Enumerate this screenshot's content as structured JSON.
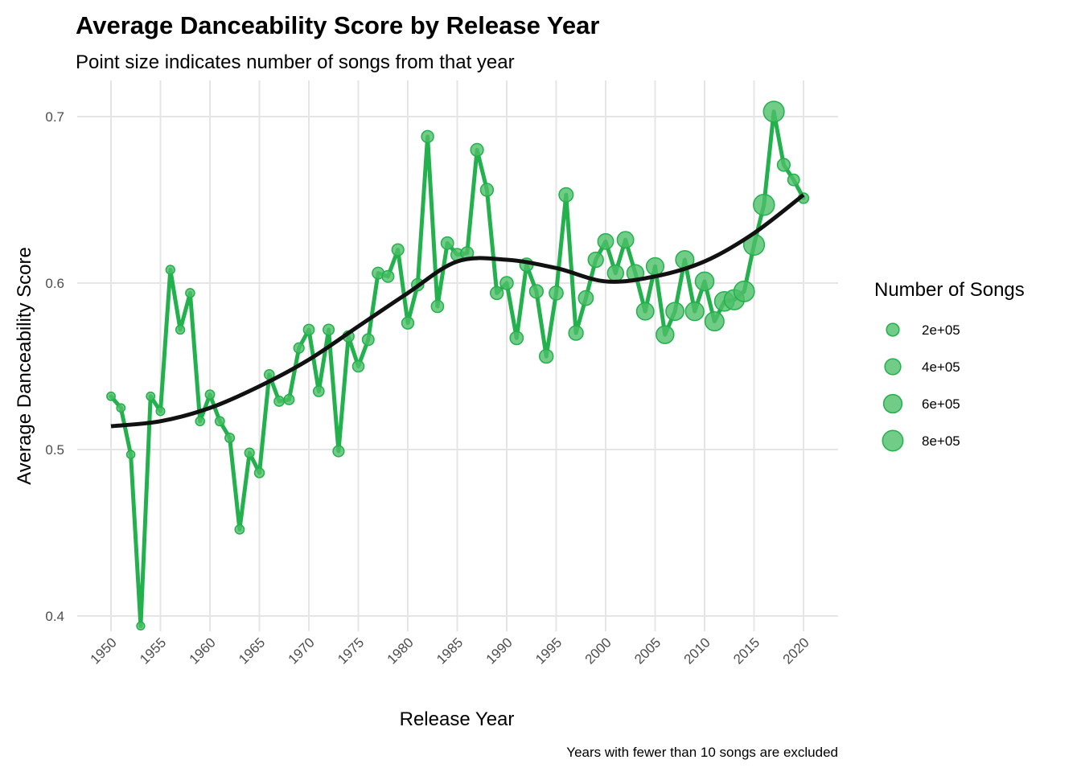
{
  "chart_data": {
    "type": "line",
    "title": "Average Danceability Score by Release Year",
    "subtitle": "Point size indicates number of songs from that year",
    "xlabel": "Release Year",
    "ylabel": "Average Danceability Score",
    "caption": "Years with fewer than 10 songs are excluded",
    "xlim": [
      1950,
      2020
    ],
    "ylim": [
      0.4,
      0.7
    ],
    "x_ticks": [
      "1950",
      "1955",
      "1960",
      "1965",
      "1970",
      "1975",
      "1980",
      "1985",
      "1990",
      "1995",
      "2000",
      "2005",
      "2010",
      "2015",
      "2020"
    ],
    "y_ticks": [
      "0.4",
      "0.5",
      "0.6",
      "0.7"
    ],
    "grid": true,
    "legend": {
      "title": "Number of Songs",
      "position": "right",
      "labels": [
        "2e+05",
        "4e+05",
        "6e+05",
        "8e+05"
      ],
      "values": [
        200000,
        400000,
        600000,
        800000
      ]
    },
    "line_color": "#22b14c",
    "point_color": "#4cbf68",
    "trend_color": "#111111",
    "series": [
      {
        "x": [
          1950,
          1951,
          1952,
          1953,
          1954,
          1955,
          1956,
          1957,
          1958,
          1959,
          1960,
          1961,
          1962,
          1963,
          1964,
          1965,
          1966,
          1967,
          1968,
          1969,
          1970,
          1971,
          1972,
          1973,
          1974,
          1975,
          1976,
          1977,
          1978,
          1979,
          1980,
          1981,
          1982,
          1983,
          1984,
          1985,
          1986,
          1987,
          1988,
          1989,
          1990,
          1991,
          1992,
          1993,
          1994,
          1995,
          1996,
          1997,
          1998,
          1999,
          2000,
          2001,
          2002,
          2003,
          2004,
          2005,
          2006,
          2007,
          2008,
          2009,
          2010,
          2011,
          2012,
          2013,
          2014,
          2015,
          2016,
          2017,
          2018,
          2019,
          2020
        ],
        "values": [
          0.532,
          0.525,
          0.497,
          0.394,
          0.532,
          0.523,
          0.608,
          0.572,
          0.594,
          0.517,
          0.533,
          0.517,
          0.507,
          0.452,
          0.498,
          0.486,
          0.545,
          0.529,
          0.53,
          0.561,
          0.572,
          0.535,
          0.572,
          0.499,
          0.568,
          0.55,
          0.566,
          0.606,
          0.604,
          0.62,
          0.576,
          0.599,
          0.688,
          0.586,
          0.624,
          0.617,
          0.618,
          0.68,
          0.656,
          0.594,
          0.6,
          0.567,
          0.611,
          0.595,
          0.556,
          0.594,
          0.653,
          0.57,
          0.591,
          0.614,
          0.625,
          0.606,
          0.626,
          0.606,
          0.583,
          0.61,
          0.569,
          0.583,
          0.614,
          0.583,
          0.601,
          0.577,
          0.589,
          0.59,
          0.595,
          0.623,
          0.647,
          0.703,
          0.671,
          0.662,
          0.651
        ],
        "songs": [
          40000,
          40000,
          35000,
          30000,
          40000,
          45000,
          50000,
          50000,
          55000,
          55000,
          60000,
          60000,
          65000,
          60000,
          70000,
          75000,
          80000,
          85000,
          90000,
          95000,
          110000,
          110000,
          120000,
          125000,
          130000,
          140000,
          150000,
          150000,
          155000,
          160000,
          165000,
          175000,
          170000,
          180000,
          185000,
          190000,
          195000,
          200000,
          205000,
          210000,
          215000,
          225000,
          235000,
          245000,
          255000,
          265000,
          285000,
          300000,
          320000,
          350000,
          380000,
          410000,
          440000,
          470000,
          500000,
          520000,
          540000,
          560000,
          580000,
          600000,
          620000,
          650000,
          700000,
          750000,
          800000,
          830000,
          850000,
          820000,
          200000,
          150000,
          100000
        ]
      }
    ],
    "trend": {
      "x": [
        1950,
        1955,
        1960,
        1965,
        1970,
        1975,
        1980,
        1985,
        1990,
        1995,
        2000,
        2005,
        2010,
        2015,
        2020
      ],
      "values": [
        0.514,
        0.517,
        0.525,
        0.538,
        0.554,
        0.574,
        0.594,
        0.613,
        0.614,
        0.609,
        0.601,
        0.604,
        0.613,
        0.63,
        0.653
      ]
    }
  }
}
